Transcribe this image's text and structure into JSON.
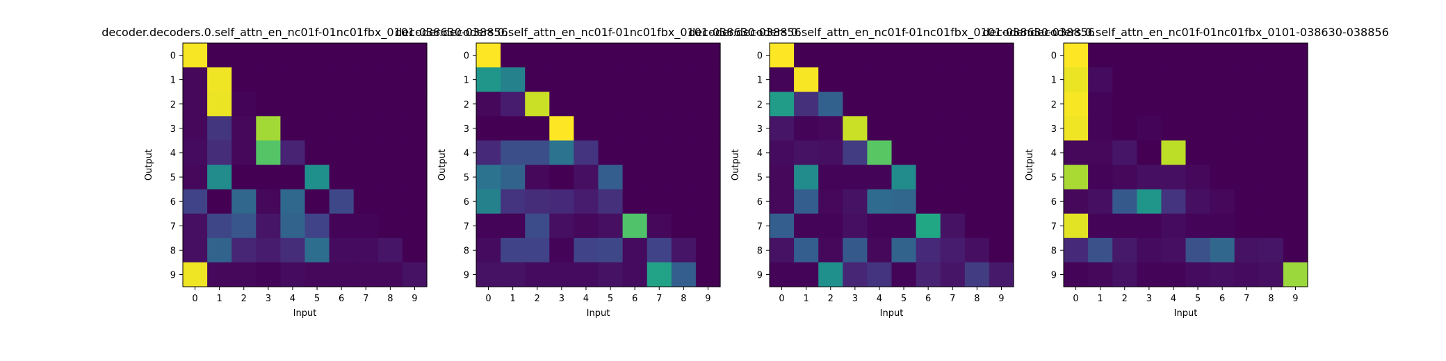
{
  "figure": {
    "background": "#ffffff"
  },
  "chart_data": [
    {
      "type": "heatmap",
      "title": "decoder.decoders.0.self_attn_en_nc01f-01nc01fbx_0101-038630-038856",
      "xlabel": "Input",
      "ylabel": "Output",
      "x_ticks": [
        "0",
        "1",
        "2",
        "3",
        "4",
        "5",
        "6",
        "7",
        "8",
        "9"
      ],
      "y_ticks": [
        "0",
        "1",
        "2",
        "3",
        "4",
        "5",
        "6",
        "7",
        "8",
        "9"
      ],
      "colormap": "viridis",
      "vmin": 0,
      "vmax": 1,
      "values": [
        [
          0.99,
          0.0,
          0.0,
          0.0,
          0.0,
          0.0,
          0.0,
          0.0,
          0.0,
          0.0
        ],
        [
          0.02,
          0.98,
          0.0,
          0.0,
          0.0,
          0.0,
          0.0,
          0.0,
          0.0,
          0.0
        ],
        [
          0.02,
          0.97,
          0.01,
          0.0,
          0.0,
          0.0,
          0.0,
          0.0,
          0.0,
          0.0
        ],
        [
          0.02,
          0.16,
          0.02,
          0.86,
          0.0,
          0.0,
          0.0,
          0.0,
          0.0,
          0.0
        ],
        [
          0.03,
          0.13,
          0.02,
          0.73,
          0.1,
          0.0,
          0.0,
          0.0,
          0.0,
          0.0
        ],
        [
          0.02,
          0.48,
          0.0,
          0.0,
          0.0,
          0.5,
          0.0,
          0.0,
          0.0,
          0.0
        ],
        [
          0.2,
          0.0,
          0.33,
          0.02,
          0.34,
          0.0,
          0.22,
          0.0,
          0.0,
          0.0
        ],
        [
          0.04,
          0.21,
          0.27,
          0.06,
          0.32,
          0.2,
          0.01,
          0.01,
          0.0,
          0.0
        ],
        [
          0.04,
          0.32,
          0.11,
          0.08,
          0.13,
          0.36,
          0.03,
          0.03,
          0.06,
          0.0
        ],
        [
          0.98,
          0.02,
          0.02,
          0.01,
          0.03,
          0.02,
          0.02,
          0.02,
          0.02,
          0.05
        ]
      ]
    },
    {
      "type": "heatmap",
      "title": "decoder.decoders.0.self_attn_en_nc01f-01nc01fbx_0101-038630-038856",
      "xlabel": "Input",
      "ylabel": "Output",
      "x_ticks": [
        "0",
        "1",
        "2",
        "3",
        "4",
        "5",
        "6",
        "7",
        "8",
        "9"
      ],
      "y_ticks": [
        "0",
        "1",
        "2",
        "3",
        "4",
        "5",
        "6",
        "7",
        "8",
        "9"
      ],
      "colormap": "viridis",
      "vmin": 0,
      "vmax": 1,
      "values": [
        [
          1.0,
          0.0,
          0.0,
          0.0,
          0.0,
          0.0,
          0.0,
          0.0,
          0.0,
          0.0
        ],
        [
          0.52,
          0.44,
          0.0,
          0.0,
          0.0,
          0.0,
          0.0,
          0.0,
          0.0,
          0.0
        ],
        [
          0.02,
          0.08,
          0.92,
          0.0,
          0.0,
          0.0,
          0.0,
          0.0,
          0.0,
          0.0
        ],
        [
          0.0,
          0.0,
          0.0,
          1.0,
          0.0,
          0.0,
          0.0,
          0.0,
          0.0,
          0.0
        ],
        [
          0.12,
          0.24,
          0.24,
          0.38,
          0.15,
          0.0,
          0.0,
          0.0,
          0.0,
          0.0
        ],
        [
          0.38,
          0.32,
          0.02,
          0.0,
          0.04,
          0.3,
          0.0,
          0.0,
          0.0,
          0.0
        ],
        [
          0.44,
          0.15,
          0.13,
          0.12,
          0.08,
          0.14,
          0.0,
          0.0,
          0.0,
          0.0
        ],
        [
          0.01,
          0.01,
          0.23,
          0.04,
          0.02,
          0.04,
          0.72,
          0.02,
          0.0,
          0.0
        ],
        [
          0.03,
          0.2,
          0.2,
          0.01,
          0.2,
          0.22,
          0.03,
          0.2,
          0.06,
          0.0
        ],
        [
          0.05,
          0.05,
          0.03,
          0.03,
          0.03,
          0.05,
          0.03,
          0.58,
          0.3,
          0.0
        ]
      ]
    },
    {
      "type": "heatmap",
      "title": "decoder.decoders.0.self_attn_en_nc01f-01nc01fbx_0101-038630-038856",
      "xlabel": "Input",
      "ylabel": "Output",
      "x_ticks": [
        "0",
        "1",
        "2",
        "3",
        "4",
        "5",
        "6",
        "7",
        "8",
        "9"
      ],
      "y_ticks": [
        "0",
        "1",
        "2",
        "3",
        "4",
        "5",
        "6",
        "7",
        "8",
        "9"
      ],
      "colormap": "viridis",
      "vmin": 0,
      "vmax": 1,
      "values": [
        [
          1.0,
          0.0,
          0.0,
          0.0,
          0.0,
          0.0,
          0.0,
          0.0,
          0.0,
          0.0
        ],
        [
          0.01,
          0.99,
          0.0,
          0.0,
          0.0,
          0.0,
          0.0,
          0.0,
          0.0,
          0.0
        ],
        [
          0.55,
          0.14,
          0.31,
          0.0,
          0.0,
          0.0,
          0.0,
          0.0,
          0.0,
          0.0
        ],
        [
          0.06,
          0.01,
          0.02,
          0.92,
          0.0,
          0.0,
          0.0,
          0.0,
          0.0,
          0.0
        ],
        [
          0.03,
          0.05,
          0.04,
          0.18,
          0.74,
          0.0,
          0.0,
          0.0,
          0.0,
          0.0
        ],
        [
          0.02,
          0.48,
          0.01,
          0.01,
          0.01,
          0.48,
          0.0,
          0.0,
          0.0,
          0.0
        ],
        [
          0.02,
          0.3,
          0.02,
          0.05,
          0.35,
          0.33,
          0.0,
          0.0,
          0.0,
          0.0
        ],
        [
          0.3,
          0.01,
          0.01,
          0.04,
          0.01,
          0.01,
          0.6,
          0.05,
          0.0,
          0.0
        ],
        [
          0.05,
          0.3,
          0.02,
          0.28,
          0.02,
          0.32,
          0.12,
          0.08,
          0.04,
          0.0
        ],
        [
          0.01,
          0.01,
          0.5,
          0.11,
          0.15,
          0.01,
          0.1,
          0.06,
          0.18,
          0.07
        ]
      ]
    },
    {
      "type": "heatmap",
      "title": "decoder.decoders.0.self_attn_en_nc01f-01nc01fbx_0101-038630-038856",
      "xlabel": "Input",
      "ylabel": "Output",
      "x_ticks": [
        "0",
        "1",
        "2",
        "3",
        "4",
        "5",
        "6",
        "7",
        "8",
        "9"
      ],
      "y_ticks": [
        "0",
        "1",
        "2",
        "3",
        "4",
        "5",
        "6",
        "7",
        "8",
        "9"
      ],
      "colormap": "viridis",
      "vmin": 0,
      "vmax": 1,
      "values": [
        [
          1.0,
          0.0,
          0.0,
          0.0,
          0.0,
          0.0,
          0.0,
          0.0,
          0.0,
          0.0
        ],
        [
          0.97,
          0.03,
          0.0,
          0.0,
          0.0,
          0.0,
          0.0,
          0.0,
          0.0,
          0.0
        ],
        [
          0.99,
          0.01,
          0.0,
          0.0,
          0.0,
          0.0,
          0.0,
          0.0,
          0.0,
          0.0
        ],
        [
          0.98,
          0.01,
          0.0,
          0.01,
          0.0,
          0.0,
          0.0,
          0.0,
          0.0,
          0.0
        ],
        [
          0.02,
          0.02,
          0.06,
          0.0,
          0.9,
          0.0,
          0.0,
          0.0,
          0.0,
          0.0
        ],
        [
          0.87,
          0.01,
          0.02,
          0.04,
          0.04,
          0.02,
          0.0,
          0.0,
          0.0,
          0.0
        ],
        [
          0.02,
          0.04,
          0.28,
          0.52,
          0.15,
          0.04,
          0.02,
          0.0,
          0.0,
          0.0
        ],
        [
          0.96,
          0.01,
          0.01,
          0.01,
          0.03,
          0.01,
          0.01,
          0.0,
          0.0,
          0.0
        ],
        [
          0.12,
          0.25,
          0.07,
          0.03,
          0.04,
          0.25,
          0.33,
          0.05,
          0.06,
          0.0
        ],
        [
          0.01,
          0.02,
          0.05,
          0.01,
          0.01,
          0.03,
          0.04,
          0.03,
          0.04,
          0.85
        ]
      ]
    }
  ]
}
